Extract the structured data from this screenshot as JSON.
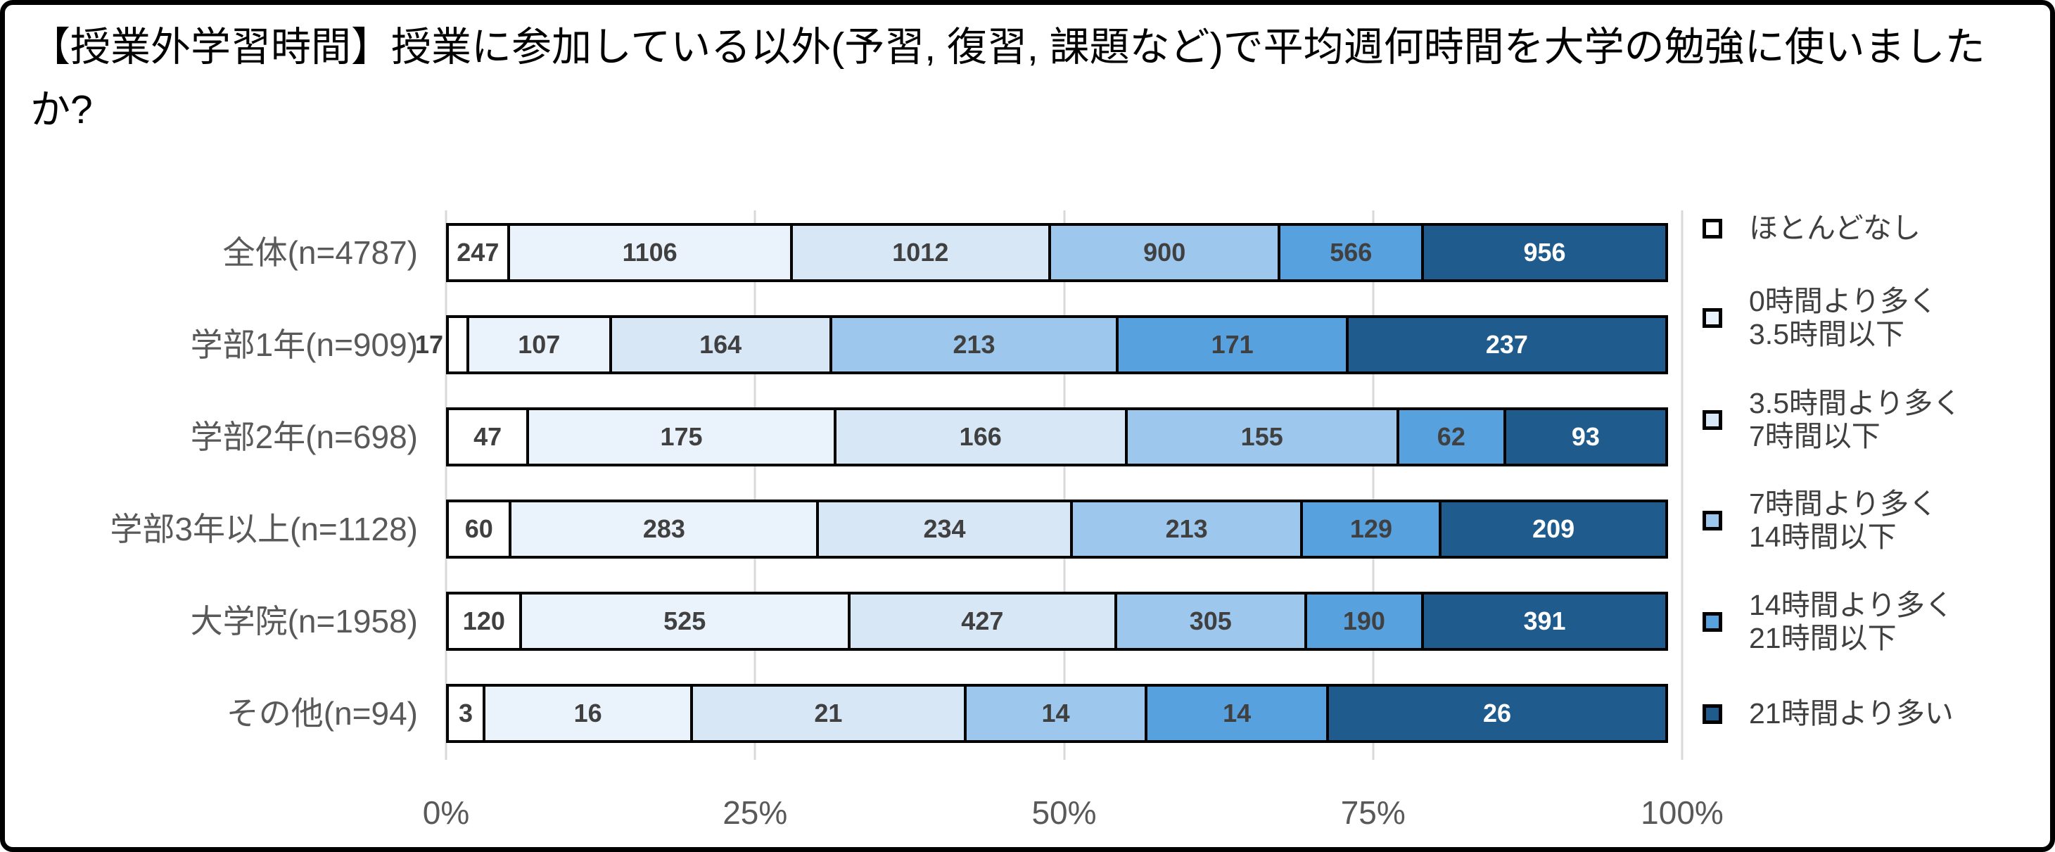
{
  "title": "【授業外学習時間】授業に参加している以外(予習, 復習, 課題など)で平均週何時間を大学の勉強に使いましたか?",
  "chart_data": {
    "type": "bar",
    "orientation": "horizontal",
    "stacked": "100%",
    "grid": "vertical",
    "legend_position": "right",
    "xlim": [
      0,
      100
    ],
    "x_tick_labels": [
      "0%",
      "25%",
      "50%",
      "75%",
      "100%"
    ],
    "categories": [
      "全体(n=4787)",
      "学部1年(n=909)",
      "学部2年(n=698)",
      "学部3年以上(n=1128)",
      "大学院(n=1958)",
      "その他(n=94)"
    ],
    "series": [
      {
        "name": "ほとんどなし",
        "color": "#FFFFFF",
        "label_color": "#404040",
        "values": [
          247,
          17,
          47,
          60,
          120,
          3
        ]
      },
      {
        "name": "0時間より多く3.5時間以下",
        "color": "#EAF2FB",
        "label_color": "#404040",
        "values": [
          1106,
          107,
          175,
          283,
          525,
          16
        ]
      },
      {
        "name": "3.5時間より多く7時間以下",
        "color": "#D7E7F6",
        "label_color": "#404040",
        "values": [
          1012,
          164,
          166,
          234,
          427,
          21
        ]
      },
      {
        "name": "7時間より多く14時間以下",
        "color": "#9DC7EC",
        "label_color": "#404040",
        "values": [
          900,
          213,
          155,
          213,
          305,
          14
        ]
      },
      {
        "name": "14時間より多く21時間以下",
        "color": "#58A1DF",
        "label_color": "#404040",
        "values": [
          566,
          171,
          62,
          129,
          190,
          14
        ]
      },
      {
        "name": "21時間より多い",
        "color": "#1F5C8D",
        "label_color": "#FFFFFF",
        "values": [
          956,
          237,
          93,
          209,
          391,
          26
        ]
      }
    ],
    "legend_labels": [
      "ほとんどなし",
      "0時間より多く\n3.5時間以下",
      "3.5時間より多く\n7時間以下",
      "7時間より多く\n14時間以下",
      "14時間より多く\n21時間以下",
      "21時間より多い"
    ],
    "colors": {
      "gridline": "#D9D9D9",
      "axis_text": "#595959",
      "category_text": "#595959",
      "value_text": "#404040",
      "value_text_on_dark": "#FFFFFF",
      "segment_border": "#000000",
      "figure_border": "#000000"
    }
  }
}
